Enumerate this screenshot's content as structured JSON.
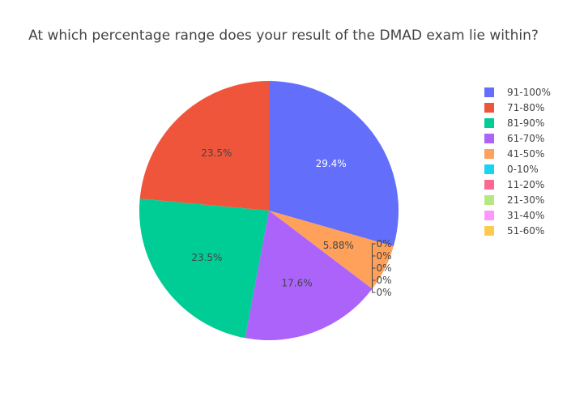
{
  "chart_data": {
    "type": "pie",
    "title": "At which percentage range does your result of the DMAD exam lie within?",
    "slices": [
      {
        "label": "91-100%",
        "value": 29.4,
        "text": "29.4%",
        "color": "#636EFA"
      },
      {
        "label": "41-50%",
        "value": 5.88,
        "text": "5.88%",
        "color": "#FFA15A"
      },
      {
        "label": "0-10%",
        "value": 0,
        "text": "0%",
        "color": "#19D3F3"
      },
      {
        "label": "11-20%",
        "value": 0,
        "text": "0%",
        "color": "#FF6692"
      },
      {
        "label": "21-30%",
        "value": 0,
        "text": "0%",
        "color": "#B6E880"
      },
      {
        "label": "31-40%",
        "value": 0,
        "text": "0%",
        "color": "#FF97FF"
      },
      {
        "label": "51-60%",
        "value": 0,
        "text": "0%",
        "color": "#FECB52"
      },
      {
        "label": "61-70%",
        "value": 17.6,
        "text": "17.6%",
        "color": "#AB63FA"
      },
      {
        "label": "81-90%",
        "value": 23.5,
        "text": "23.5%",
        "color": "#00CC96"
      },
      {
        "label": "71-80%",
        "value": 23.5,
        "text": "23.5%",
        "color": "#EF553B"
      }
    ],
    "legend": [
      "91-100%",
      "71-80%",
      "81-90%",
      "61-70%",
      "41-50%",
      "0-10%",
      "11-20%",
      "21-30%",
      "31-40%",
      "51-60%"
    ],
    "legend_position": "top-right"
  }
}
